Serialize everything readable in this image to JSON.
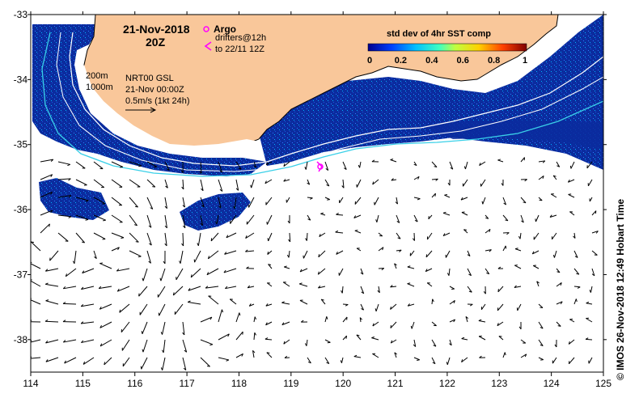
{
  "title": {
    "date": "21-Nov-2018",
    "time": "20Z"
  },
  "legend": {
    "argo_label": "Argo",
    "drifters_label": "drifters@12h",
    "drifters_range": "to 22/11 12Z",
    "depth_200": "200m",
    "depth_1000": "1000m",
    "product": "NRT00 GSL",
    "product_time": "21-Nov 00:00Z",
    "scale_label": "0.5m/s (1kt 24h)"
  },
  "colorbar": {
    "title": "std dev of 4hr SST comp",
    "ticks": [
      "0",
      "0.2",
      "0.4",
      "0.6",
      "0.8",
      "1"
    ]
  },
  "axes": {
    "x_ticks": [
      "114",
      "115",
      "116",
      "117",
      "118",
      "119",
      "120",
      "121",
      "122",
      "123",
      "124",
      "125"
    ],
    "y_ticks": [
      "-33",
      "-34",
      "-35",
      "-36",
      "-37",
      "-38"
    ]
  },
  "credit": "© IMOS 26-Nov-2018 12:49 Hobart Time",
  "colors": {
    "land": "#f9c79a",
    "ocean_dark": "#0a2a9c",
    "isobath_200": "#ffffff",
    "isobath_1000": "#3ad0e8",
    "argo": "#ff00ff"
  },
  "map_bounds": {
    "lon": [
      114,
      125
    ],
    "lat": [
      -38.5,
      -33
    ]
  }
}
